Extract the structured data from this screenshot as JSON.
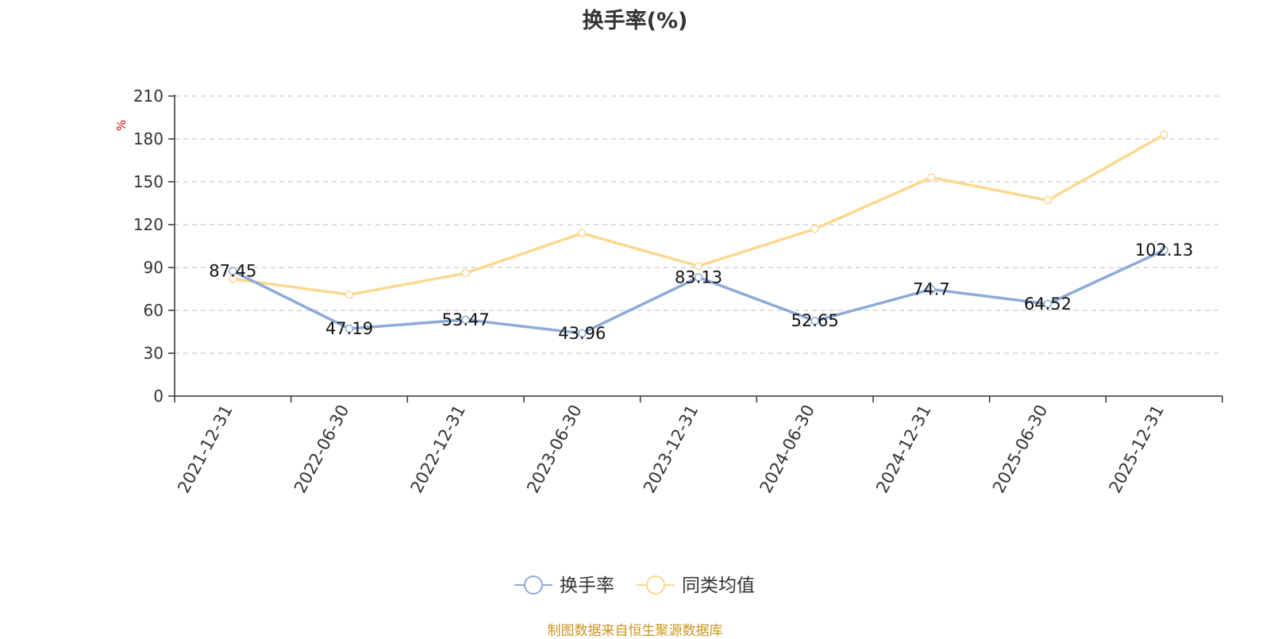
{
  "chart_data": {
    "type": "line",
    "title": "换手率(%)",
    "ylabel": "%",
    "xlabel": "",
    "categories": [
      "2021-12-31",
      "2022-06-30",
      "2022-12-31",
      "2023-06-30",
      "2023-12-31",
      "2024-06-30",
      "2024-12-31",
      "2025-06-30",
      "2025-12-31"
    ],
    "ylim": [
      0,
      210
    ],
    "yticks": [
      0,
      30,
      60,
      90,
      120,
      150,
      180,
      210
    ],
    "grid": true,
    "legend_position": "bottom-center",
    "series": [
      {
        "name": "换手率",
        "color": "#8eaad7",
        "show_labels": true,
        "values": [
          87.45,
          47.19,
          53.47,
          43.96,
          83.13,
          52.65,
          74.7,
          64.52,
          102.13
        ]
      },
      {
        "name": "同类均值",
        "color": "#fcd88f",
        "show_labels": false,
        "values": [
          82,
          71,
          86,
          114,
          91,
          117,
          153,
          137,
          183
        ]
      }
    ]
  },
  "source_note": "制图数据来自恒生聚源数据库"
}
